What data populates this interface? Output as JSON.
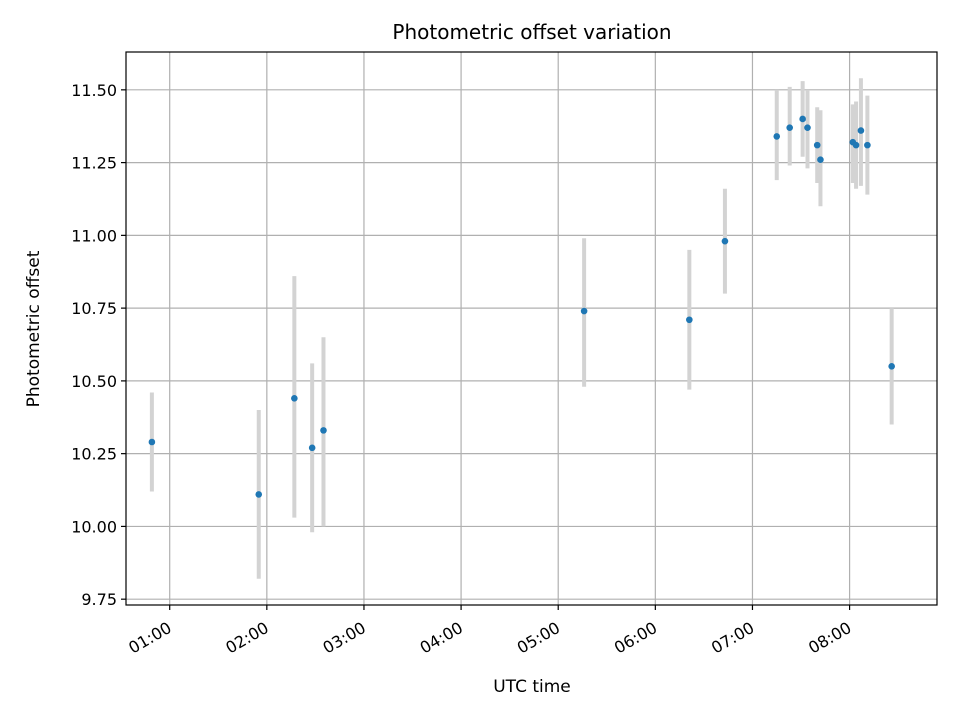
{
  "chart_data": {
    "type": "scatter",
    "title": "Photometric offset variation",
    "xlabel": "UTC time",
    "ylabel": "Photometric offset",
    "x_unit": "minutes",
    "xlim": [
      33,
      534
    ],
    "ylim": [
      9.73,
      11.63
    ],
    "x_ticks": [
      {
        "value": 60,
        "label": "01:00"
      },
      {
        "value": 120,
        "label": "02:00"
      },
      {
        "value": 180,
        "label": "03:00"
      },
      {
        "value": 240,
        "label": "04:00"
      },
      {
        "value": 300,
        "label": "05:00"
      },
      {
        "value": 360,
        "label": "06:00"
      },
      {
        "value": 420,
        "label": "07:00"
      },
      {
        "value": 480,
        "label": "08:00"
      }
    ],
    "y_ticks": [
      {
        "value": 9.75,
        "label": "9.75"
      },
      {
        "value": 10.0,
        "label": "10.00"
      },
      {
        "value": 10.25,
        "label": "10.25"
      },
      {
        "value": 10.5,
        "label": "10.50"
      },
      {
        "value": 10.75,
        "label": "10.75"
      },
      {
        "value": 11.0,
        "label": "11.00"
      },
      {
        "value": 11.25,
        "label": "11.25"
      },
      {
        "value": 11.5,
        "label": "11.50"
      }
    ],
    "grid": true,
    "point_color": "#1f77b4",
    "errorbar_color": "#d3d3d3",
    "points": [
      {
        "x": 49,
        "y": 10.29,
        "ylo": 10.12,
        "yhi": 10.46
      },
      {
        "x": 115,
        "y": 10.11,
        "ylo": 9.82,
        "yhi": 10.4
      },
      {
        "x": 137,
        "y": 10.44,
        "ylo": 10.03,
        "yhi": 10.86
      },
      {
        "x": 148,
        "y": 10.27,
        "ylo": 9.98,
        "yhi": 10.56
      },
      {
        "x": 155,
        "y": 10.33,
        "ylo": 10.0,
        "yhi": 10.65
      },
      {
        "x": 316,
        "y": 10.74,
        "ylo": 10.48,
        "yhi": 10.99
      },
      {
        "x": 381,
        "y": 10.71,
        "ylo": 10.47,
        "yhi": 10.95
      },
      {
        "x": 403,
        "y": 10.98,
        "ylo": 10.8,
        "yhi": 11.16
      },
      {
        "x": 435,
        "y": 11.34,
        "ylo": 11.19,
        "yhi": 11.5
      },
      {
        "x": 443,
        "y": 11.37,
        "ylo": 11.24,
        "yhi": 11.51
      },
      {
        "x": 451,
        "y": 11.4,
        "ylo": 11.27,
        "yhi": 11.53
      },
      {
        "x": 454,
        "y": 11.37,
        "ylo": 11.23,
        "yhi": 11.5
      },
      {
        "x": 460,
        "y": 11.31,
        "ylo": 11.18,
        "yhi": 11.44
      },
      {
        "x": 462,
        "y": 11.26,
        "ylo": 11.1,
        "yhi": 11.43
      },
      {
        "x": 482,
        "y": 11.32,
        "ylo": 11.18,
        "yhi": 11.45
      },
      {
        "x": 484,
        "y": 11.31,
        "ylo": 11.16,
        "yhi": 11.46
      },
      {
        "x": 487,
        "y": 11.36,
        "ylo": 11.17,
        "yhi": 11.54
      },
      {
        "x": 491,
        "y": 11.31,
        "ylo": 11.14,
        "yhi": 11.48
      },
      {
        "x": 506,
        "y": 10.55,
        "ylo": 10.35,
        "yhi": 10.75
      }
    ]
  }
}
